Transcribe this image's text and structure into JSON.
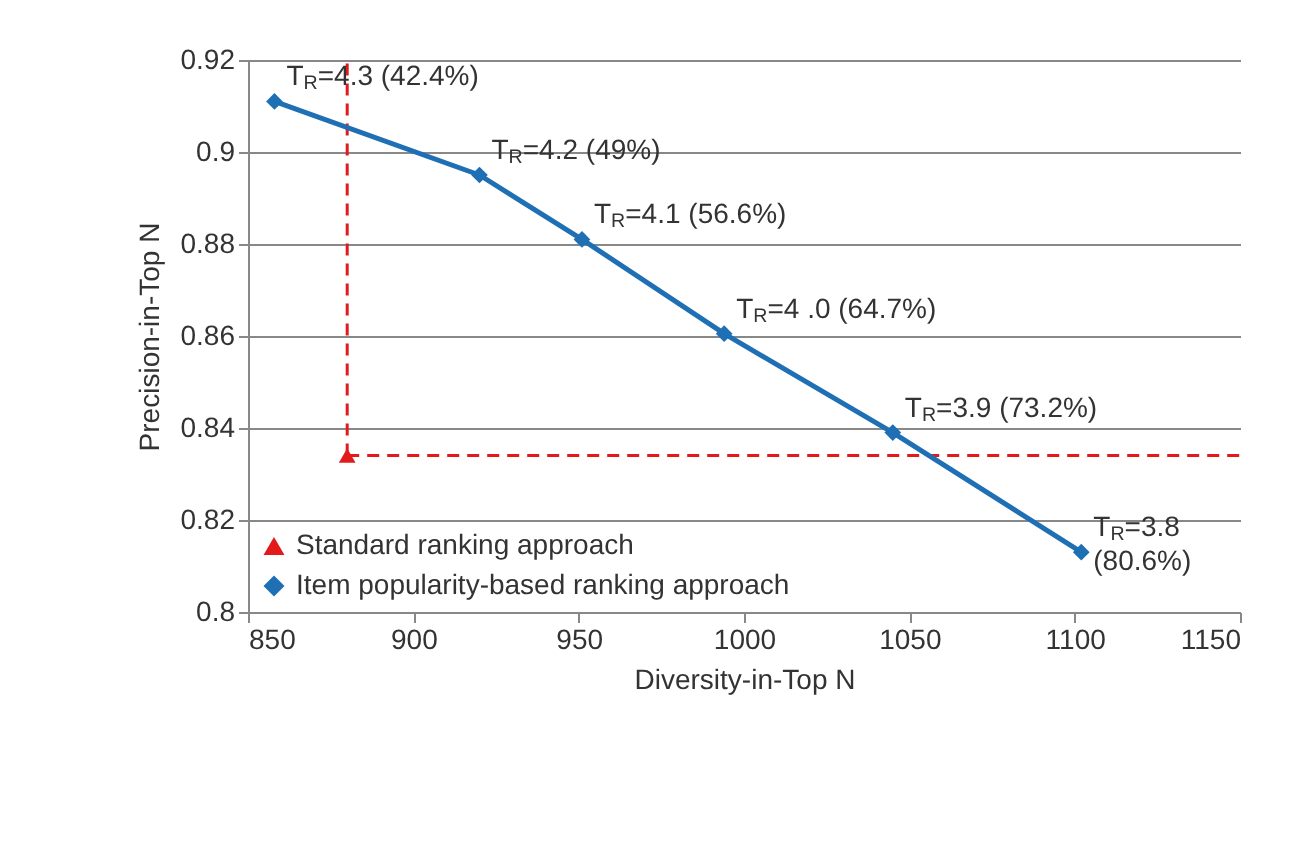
{
  "chart_data": {
    "type": "line",
    "xlabel": "Diversity-in-Top N",
    "ylabel": "Precision-in-Top N",
    "xlim": [
      850,
      1150
    ],
    "xticks": [
      850,
      900,
      950,
      1000,
      1050,
      1100,
      1150
    ],
    "ylim": [
      0.8,
      0.92
    ],
    "yticks": [
      0.8,
      0.82,
      0.84,
      0.86,
      0.88,
      0.9,
      0.92
    ],
    "grid": "y",
    "legend": "bottom left",
    "series": [
      {
        "name": "Standard ranking approach",
        "type": "scatter",
        "marker": "triangle",
        "color": "#e31a1c",
        "x": [
          880
        ],
        "values": [
          0.834
        ]
      },
      {
        "name": "Item popularity-based ranking approach",
        "type": "line",
        "marker": "diamond",
        "color": "#1f6fb5",
        "x": [
          858,
          920,
          951,
          994,
          1045,
          1102
        ],
        "values": [
          0.911,
          0.895,
          0.881,
          0.8605,
          0.839,
          0.813
        ]
      }
    ],
    "ref_lines": [
      {
        "axis": "x",
        "value": 880,
        "label": null,
        "color": "#e31a1c",
        "line_style": "dashed"
      },
      {
        "axis": "y",
        "value": 0.834,
        "label": null,
        "color": "#e31a1c",
        "line_style": "dashed"
      }
    ],
    "annotations": [
      {
        "text": "T$_{R}$=4.3 (42.4%)",
        "x": 858,
        "y": 0.911
      },
      {
        "text": "T$_{R}$=4.2 (49%)",
        "x": 920,
        "y": 0.895
      },
      {
        "text": "T$_{R}$=4.1 (56.6%)",
        "x": 951,
        "y": 0.881
      },
      {
        "text": "T$_{R}$=4 .0 (64.7%)",
        "x": 994,
        "y": 0.8605
      },
      {
        "text": "T$_{R}$=3.9 (73.2%)",
        "x": 1045,
        "y": 0.839
      },
      {
        "text": "T$_{R}$=3.8\n(80.6%)",
        "x": 1102,
        "y": 0.813
      }
    ]
  }
}
